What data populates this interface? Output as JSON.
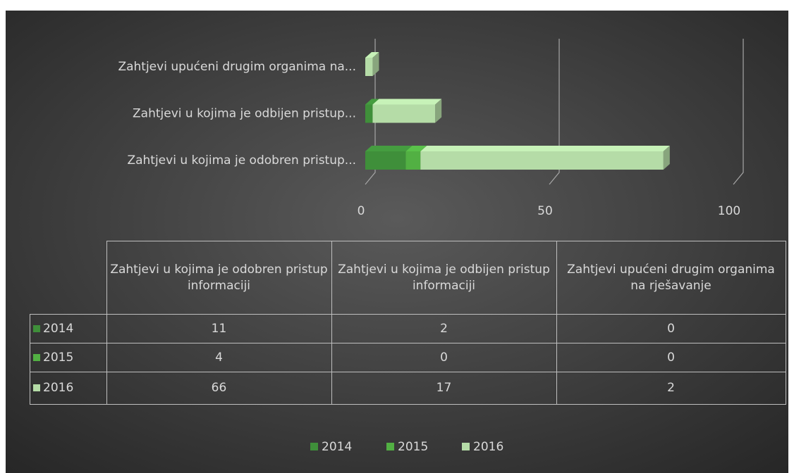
{
  "chart_data": {
    "type": "bar",
    "orientation": "horizontal",
    "stacked": true,
    "categories": [
      "Zahtjevi u kojima je odobren pristup informaciji",
      "Zahtjevi u kojima je odbijen pristup informaciji",
      "Zahtjevi upućeni drugim organima na rješavanje"
    ],
    "category_axis_labels": [
      "Zahtjevi u kojima je odobren pristup...",
      "Zahtjevi u kojima je odbijen pristup...",
      "Zahtjevi upućeni drugim organima na..."
    ],
    "series": [
      {
        "name": "2014",
        "color": "#3f8f3a",
        "values": [
          11,
          2,
          0
        ]
      },
      {
        "name": "2015",
        "color": "#52b043",
        "values": [
          4,
          0,
          0
        ]
      },
      {
        "name": "2016",
        "color": "#b5dca7",
        "values": [
          66,
          17,
          2
        ]
      }
    ],
    "xlim": [
      0,
      100
    ],
    "xticks": [
      0,
      50,
      100
    ],
    "grid": true,
    "legend": "bottom",
    "data_table": true
  }
}
